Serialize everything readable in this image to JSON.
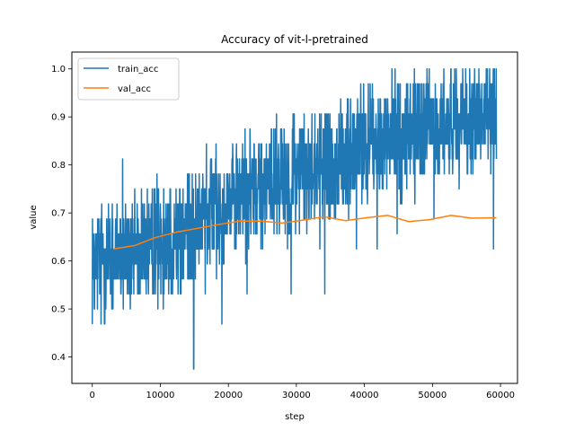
{
  "chart_data": {
    "type": "line",
    "title": "Accuracy of vit-l-pretrained",
    "xlabel": "step",
    "ylabel": "value",
    "xlim": [
      -3000,
      62500
    ],
    "ylim": [
      0.345,
      1.035
    ],
    "xticks": [
      0,
      10000,
      20000,
      30000,
      40000,
      50000,
      60000
    ],
    "xtick_labels": [
      "0",
      "10000",
      "20000",
      "30000",
      "40000",
      "50000",
      "60000"
    ],
    "yticks": [
      0.4,
      0.5,
      0.6,
      0.7,
      0.8,
      0.9,
      1.0
    ],
    "ytick_labels": [
      "0.4",
      "0.5",
      "0.6",
      "0.7",
      "0.8",
      "0.9",
      "1.0"
    ],
    "grid": false,
    "legend": "top-left",
    "series": [
      {
        "name": "train_acc",
        "color": "#1f77b4",
        "x_range": [
          0,
          59400
        ],
        "points": 1800,
        "trend": [
          [
            0,
            0.6
          ],
          [
            5000,
            0.62
          ],
          [
            10000,
            0.64
          ],
          [
            15000,
            0.67
          ],
          [
            20000,
            0.73
          ],
          [
            25000,
            0.76
          ],
          [
            30000,
            0.78
          ],
          [
            35000,
            0.8
          ],
          [
            40000,
            0.84
          ],
          [
            45000,
            0.86
          ],
          [
            50000,
            0.88
          ],
          [
            55000,
            0.9
          ],
          [
            59400,
            0.9
          ]
        ],
        "min": 0.375,
        "max": 1.0,
        "min_at": 14900,
        "noisy": true
      },
      {
        "name": "val_acc",
        "color": "#ff7f0e",
        "x": [
          3100,
          6200,
          9300,
          12400,
          15500,
          18600,
          21700,
          24800,
          27900,
          31000,
          34100,
          37200,
          40300,
          43400,
          46500,
          49600,
          52700,
          55800,
          59400
        ],
        "values": [
          0.625,
          0.632,
          0.649,
          0.66,
          0.668,
          0.676,
          0.683,
          0.683,
          0.679,
          0.685,
          0.692,
          0.684,
          0.69,
          0.695,
          0.682,
          0.686,
          0.695,
          0.689,
          0.69
        ]
      }
    ]
  }
}
